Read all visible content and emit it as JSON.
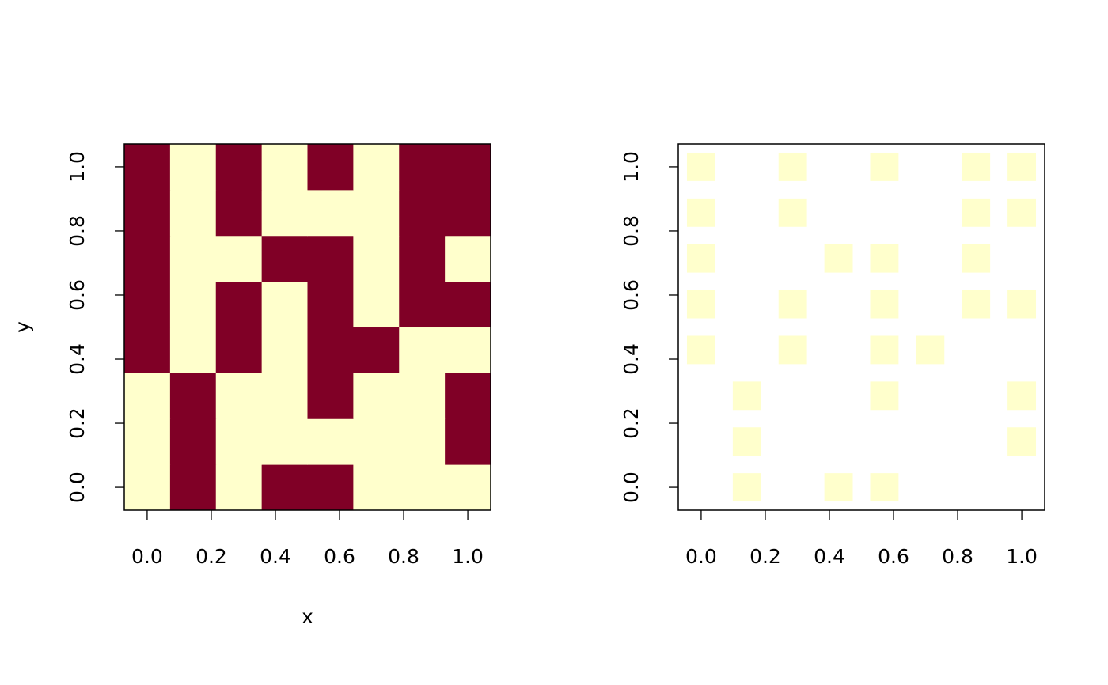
{
  "chart_data": [
    {
      "type": "heatmap",
      "xlabel": "x",
      "ylabel": "y",
      "x": [
        0,
        0.1429,
        0.2857,
        0.4286,
        0.5714,
        0.7143,
        0.8571,
        1
      ],
      "y": [
        0,
        0.1429,
        0.2857,
        0.4286,
        0.5714,
        0.7143,
        0.8571,
        1
      ],
      "z": [
        [
          0,
          1,
          0,
          1,
          1,
          0,
          0,
          0
        ],
        [
          0,
          1,
          0,
          0,
          0,
          0,
          0,
          1
        ],
        [
          0,
          1,
          0,
          0,
          1,
          0,
          0,
          1
        ],
        [
          1,
          0,
          1,
          0,
          1,
          1,
          0,
          0
        ],
        [
          1,
          0,
          1,
          0,
          1,
          0,
          1,
          1
        ],
        [
          1,
          0,
          0,
          1,
          1,
          0,
          1,
          0
        ],
        [
          1,
          0,
          1,
          0,
          0,
          0,
          1,
          1
        ],
        [
          1,
          0,
          1,
          0,
          1,
          0,
          1,
          1
        ]
      ],
      "colors": [
        "#ffffcc",
        "#800026"
      ],
      "xlim": [
        -0.0714,
        1.0714
      ],
      "ylim": [
        -0.0714,
        1.0714
      ],
      "xticks": [
        {
          "value": 0,
          "label": "0.0"
        },
        0.2,
        0.4,
        0.6,
        0.8,
        {
          "value": 1,
          "label": "1.0"
        }
      ],
      "yticks": [
        {
          "value": 0,
          "label": "0.0"
        },
        0.2,
        0.4,
        0.6,
        0.8,
        {
          "value": 1,
          "label": "1.0"
        }
      ]
    },
    {
      "type": "heatmap",
      "x": [
        0,
        0.1429,
        0.2857,
        0.4286,
        0.5714,
        0.7143,
        0.8571,
        1
      ],
      "y": [
        0,
        0.1429,
        0.2857,
        0.4286,
        0.5714,
        0.7143,
        0.8571,
        1
      ],
      "z": [
        [
          null,
          0,
          null,
          0,
          0,
          null,
          null,
          null
        ],
        [
          null,
          0,
          null,
          null,
          null,
          null,
          null,
          0
        ],
        [
          null,
          0,
          null,
          null,
          0,
          null,
          null,
          0
        ],
        [
          0,
          null,
          0,
          null,
          0,
          0,
          null,
          null
        ],
        [
          0,
          null,
          0,
          null,
          0,
          null,
          0,
          0
        ],
        [
          0,
          null,
          null,
          0,
          0,
          null,
          0,
          null
        ],
        [
          0,
          null,
          0,
          null,
          null,
          null,
          0,
          0
        ],
        [
          0,
          null,
          0,
          null,
          0,
          null,
          0,
          0
        ]
      ],
      "colors": [
        "#ffffcc"
      ],
      "xlim": [
        -0.0714,
        1.0714
      ],
      "ylim": [
        -0.0714,
        1.0714
      ],
      "xticks": [
        {
          "value": 0,
          "label": "0.0"
        },
        0.2,
        0.4,
        0.6,
        0.8,
        {
          "value": 1,
          "label": "1.0"
        }
      ],
      "yticks": [
        {
          "value": 0,
          "label": "0.0"
        },
        0.2,
        0.4,
        0.6,
        0.8,
        {
          "value": 1,
          "label": "1.0"
        }
      ]
    }
  ]
}
